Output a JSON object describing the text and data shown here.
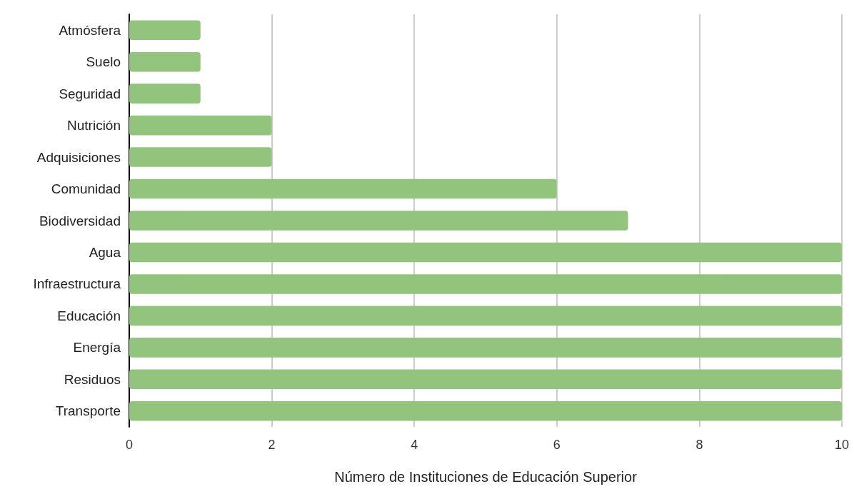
{
  "chart_data": {
    "type": "bar",
    "orientation": "horizontal",
    "xlabel": "Número de Instituciones de Educación Superior",
    "categories": [
      "Atmósfera",
      "Suelo",
      "Seguridad",
      "Nutrición",
      "Adquisiciones",
      "Comunidad",
      "Biodiversidad",
      "Agua",
      "Infraestructura",
      "Educación",
      "Energía",
      "Residuos",
      "Transporte"
    ],
    "values": [
      1,
      1,
      1,
      2,
      2,
      6,
      7,
      10,
      10,
      10,
      10,
      10,
      10
    ],
    "color": "#93c47d",
    "xlim": [
      0,
      10
    ],
    "xticks": [
      0,
      2,
      4,
      6,
      8,
      10
    ],
    "grid": "x"
  }
}
